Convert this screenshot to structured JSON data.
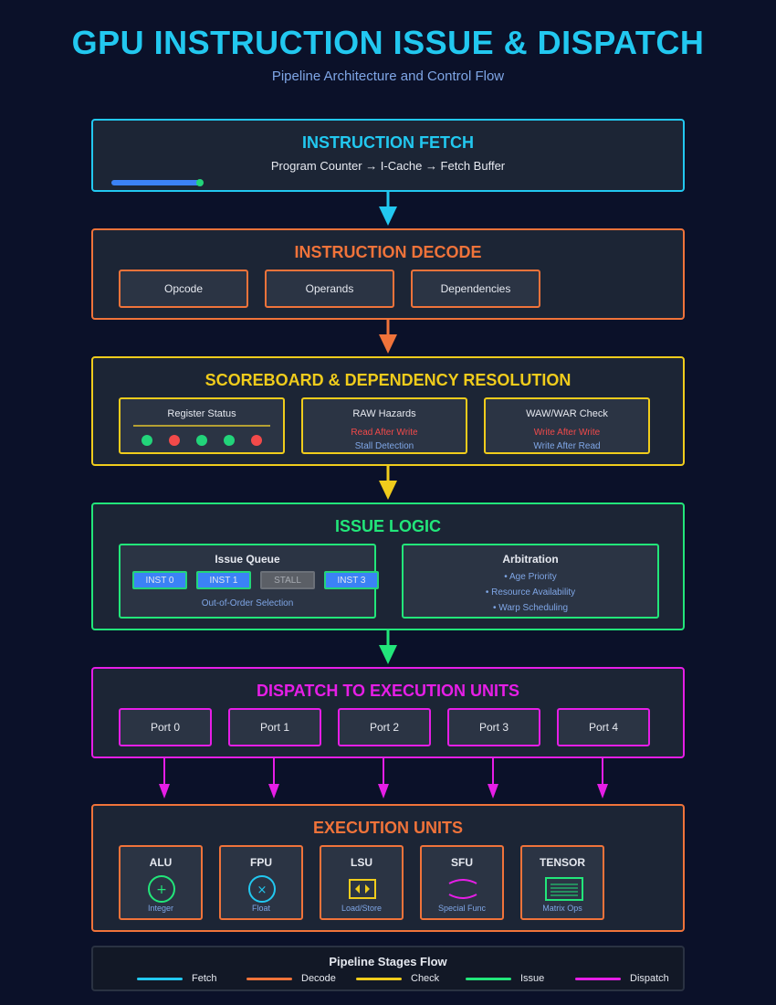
{
  "header": {
    "title": "GPU INSTRUCTION ISSUE & DISPATCH",
    "subtitle": "Pipeline Architecture and Control Flow"
  },
  "colors": {
    "fetch": "#22c8f0",
    "decode": "#f0733a",
    "check": "#f0cc1c",
    "issue": "#22e67a",
    "dispatch": "#e61ee6",
    "progress": "#3b82f6",
    "dot_green": "#22d47a",
    "dot_red": "#f24a4a"
  },
  "fetch": {
    "title": "INSTRUCTION FETCH",
    "flow": "Program Counter → I-Cache → Fetch Buffer",
    "progress": 0.16
  },
  "decode": {
    "title": "INSTRUCTION DECODE",
    "fields": [
      "Opcode",
      "Operands",
      "Dependencies"
    ]
  },
  "scoreboard": {
    "title": "SCOREBOARD & DEPENDENCY RESOLUTION",
    "register_status": {
      "label": "Register Status",
      "dots": [
        "green",
        "red",
        "green",
        "green",
        "red"
      ]
    },
    "raw": {
      "label": "RAW Hazards",
      "line1": "Read After Write",
      "line2": "Stall Detection"
    },
    "waw": {
      "label": "WAW/WAR Check",
      "line1": "Write After Write",
      "line2": "Write After Read"
    }
  },
  "issue": {
    "title": "ISSUE LOGIC",
    "queue": {
      "label": "Issue Queue",
      "chips": [
        "INST 0",
        "INST 1",
        "STALL",
        "INST 3"
      ],
      "caption": "Out-of-Order Selection"
    },
    "arbitration": {
      "label": "Arbitration",
      "items": [
        "• Age Priority",
        "• Resource Availability",
        "• Warp Scheduling"
      ]
    }
  },
  "dispatch": {
    "title": "DISPATCH TO EXECUTION UNITS",
    "ports": [
      "Port 0",
      "Port 1",
      "Port 2",
      "Port 3",
      "Port 4"
    ]
  },
  "execution": {
    "title": "EXECUTION UNITS",
    "units": [
      {
        "name": "ALU",
        "label": "Integer",
        "icon": "plus-circle-icon",
        "glyph": "+"
      },
      {
        "name": "FPU",
        "label": "Float",
        "icon": "times-circle-icon",
        "glyph": "×"
      },
      {
        "name": "LSU",
        "label": "Load/Store",
        "icon": "load-store-icon",
        "glyph": ""
      },
      {
        "name": "SFU",
        "label": "Special Func",
        "icon": "special-func-icon",
        "glyph": ""
      },
      {
        "name": "TENSOR",
        "label": "Matrix Ops",
        "icon": "matrix-icon",
        "glyph": ""
      }
    ]
  },
  "legend": {
    "title": "Pipeline Stages Flow",
    "items": [
      "Fetch",
      "Decode",
      "Check",
      "Issue",
      "Dispatch"
    ]
  }
}
